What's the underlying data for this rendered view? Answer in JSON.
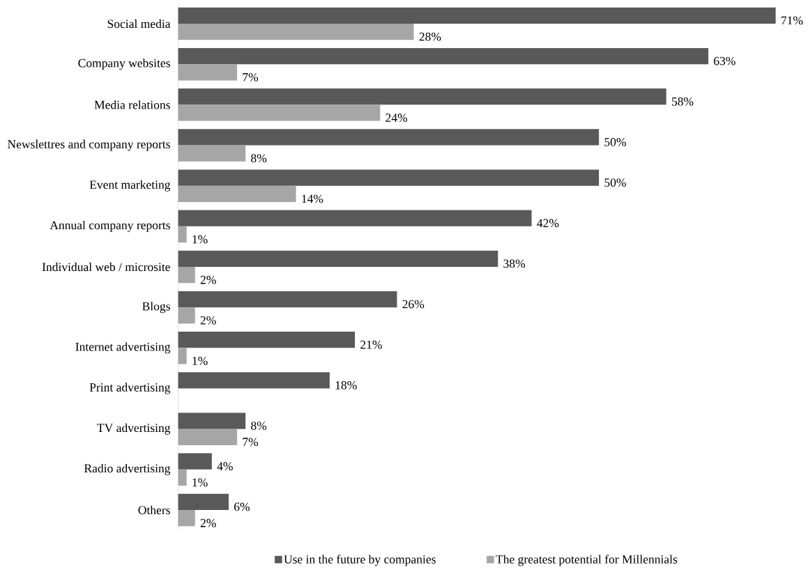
{
  "chart_data": {
    "type": "bar",
    "orientation": "horizontal",
    "legend": "bottom",
    "categories": [
      "Social media",
      "Company websites",
      "Media relations",
      "Newslettres and company reports",
      "Event marketing",
      "Annual company reports",
      "Individual web / microsite",
      "Blogs",
      "Internet advertising",
      "Print advertising",
      "TV advertising",
      "Radio advertising",
      "Others"
    ],
    "series": [
      {
        "name": "Use in the future by companies",
        "color": "#595959",
        "values": [
          71,
          63,
          58,
          50,
          50,
          42,
          38,
          26,
          21,
          18,
          8,
          4,
          6
        ],
        "value_labels": [
          "71%",
          "63%",
          "58%",
          "50%",
          "50%",
          "42%",
          "38%",
          "26%",
          "21%",
          "18%",
          "8%",
          "4%",
          "6%"
        ]
      },
      {
        "name": "The greatest potential for Millennials",
        "color": "#a6a6a6",
        "values": [
          28,
          7,
          24,
          8,
          14,
          1,
          2,
          2,
          1,
          null,
          7,
          1,
          2
        ],
        "value_labels": [
          "28%",
          "7%",
          "24%",
          "8%",
          "14%",
          "1%",
          "2%",
          "2%",
          "1%",
          null,
          "7%",
          "1%",
          "2%"
        ]
      }
    ]
  }
}
